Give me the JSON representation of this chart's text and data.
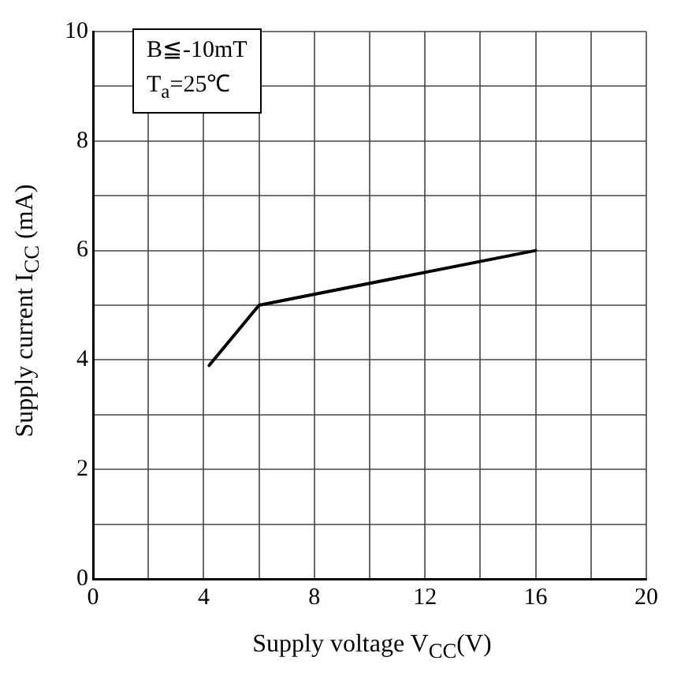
{
  "chart_data": {
    "type": "line",
    "xlabel": "Supply voltage V$_{CC}$(V)",
    "ylabel": "Supply current I$_{CC}$ (mA)",
    "annotations": [
      "B≦-10mT",
      "T$_{a}$=25℃"
    ],
    "series": [
      {
        "color": "#000000",
        "x": [
          4.2,
          6,
          16
        ],
        "values": [
          3.9,
          5.0,
          6.0
        ]
      }
    ],
    "xlim": [
      0,
      20
    ],
    "xticks": [
      0,
      {
        "value": 2,
        "label": null
      },
      4,
      {
        "value": 6,
        "label": null
      },
      8,
      {
        "value": 10,
        "label": null
      },
      12,
      {
        "value": 14,
        "label": null
      },
      16,
      {
        "value": 18,
        "label": null
      },
      20
    ],
    "ylim": [
      0,
      10
    ],
    "yticks": [
      0,
      {
        "value": 1,
        "label": null
      },
      2,
      {
        "value": 3,
        "label": null
      },
      4,
      {
        "value": 5,
        "label": null
      },
      6,
      {
        "value": 7,
        "label": null
      },
      8,
      {
        "value": 9,
        "label": null
      },
      10
    ],
    "grid": true,
    "legend": false,
    "marker": "none",
    "line_style": "solid"
  }
}
